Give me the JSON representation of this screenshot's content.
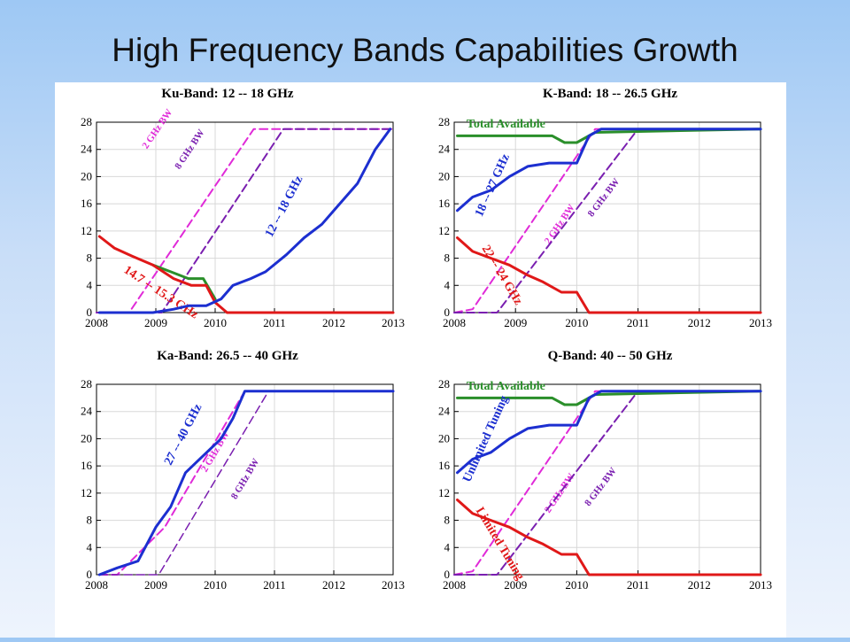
{
  "slide": {
    "title": "High Frequency Bands Capabilities Growth"
  },
  "colors": {
    "red": "#e01818",
    "green": "#2a8f2a",
    "blue": "#1c2fd0",
    "magenta": "#e02ad8",
    "purple": "#7a1fb0"
  },
  "chart_data": [
    {
      "type": "line",
      "title": "Ku-Band:  12 -- 18 GHz",
      "xlim": [
        2008,
        2013
      ],
      "ylim": [
        0,
        28
      ],
      "xticks": [
        "2008",
        "2009",
        "2010",
        "2011",
        "2012",
        "2013"
      ],
      "yticks": [
        "0",
        "4",
        "8",
        "12",
        "16",
        "20",
        "24",
        "28"
      ],
      "grid": true,
      "series": [
        {
          "name": "2 GHz BW",
          "color": "magenta",
          "style": "dash",
          "width": 2,
          "label_pos": [
            2008.85,
            24
          ],
          "x": [
            2008,
            2008.55,
            2010.65,
            2013
          ],
          "y": [
            0,
            0,
            27,
            27
          ]
        },
        {
          "name": "8 GHz BW",
          "color": "purple",
          "style": "dash",
          "width": 2,
          "label_pos": [
            2009.4,
            21
          ],
          "x": [
            2008,
            2009.1,
            2011.15,
            2013
          ],
          "y": [
            0,
            0,
            27,
            27
          ]
        },
        {
          "name": "",
          "color": "green",
          "style": "solid",
          "width": 3,
          "x": [
            2008.95,
            2009.25,
            2009.55,
            2009.8,
            2010.0
          ],
          "y": [
            7,
            6,
            5,
            5,
            2
          ]
        },
        {
          "name": "14.7 -- 15.3 GHz",
          "color": "red",
          "style": "solid",
          "width": 3,
          "label_pos": [
            2008.45,
            6
          ],
          "label_size": 13,
          "x": [
            2008.05,
            2008.3,
            2008.6,
            2008.95,
            2009.3,
            2009.6,
            2009.85,
            2010.0,
            2010.2,
            2013
          ],
          "y": [
            11.2,
            9.5,
            8.3,
            7.0,
            5.0,
            4.0,
            4.0,
            1.5,
            0,
            0
          ]
        },
        {
          "name": "12 -- 18 GHz",
          "color": "blue",
          "style": "solid",
          "width": 3,
          "label_pos": [
            2010.95,
            11
          ],
          "label_size": 14,
          "x": [
            2008.05,
            2008.95,
            2009.3,
            2009.55,
            2009.85,
            2010.1,
            2010.3,
            2010.6,
            2010.85,
            2011.2,
            2011.5,
            2011.8,
            2012.1,
            2012.4,
            2012.7,
            2012.95
          ],
          "y": [
            0,
            0,
            0.5,
            1,
            1,
            2,
            4,
            5,
            6,
            8.5,
            11,
            13,
            16,
            19,
            24,
            27
          ]
        }
      ]
    },
    {
      "type": "line",
      "title": "K-Band:  18 -- 26.5 GHz",
      "xlim": [
        2008,
        2013
      ],
      "ylim": [
        0,
        28
      ],
      "xticks": [
        "2008",
        "2009",
        "2010",
        "2011",
        "2012",
        "2013"
      ],
      "yticks": [
        "0",
        "4",
        "8",
        "12",
        "16",
        "20",
        "24",
        "28"
      ],
      "grid": true,
      "series": [
        {
          "name": "2 GHz BW",
          "color": "magenta",
          "style": "dash",
          "width": 2,
          "label_pos": [
            2009.55,
            10
          ],
          "x": [
            2008,
            2008.3,
            2010.3,
            2013
          ],
          "y": [
            0,
            0.5,
            27,
            27
          ]
        },
        {
          "name": "8 GHz BW",
          "color": "purple",
          "style": "dash",
          "width": 2,
          "label_pos": [
            2010.25,
            14
          ],
          "x": [
            2008,
            2008.7,
            2011.0,
            2013
          ],
          "y": [
            0,
            0,
            27,
            27
          ]
        },
        {
          "name": "Total Available",
          "color": "green",
          "style": "solid",
          "width": 3,
          "label_pos": [
            2008.2,
            27.2
          ],
          "label_size": 14,
          "label_angle": 0,
          "x": [
            2008.05,
            2009.4,
            2009.6,
            2009.8,
            2010.0,
            2010.3,
            2013
          ],
          "y": [
            26,
            26,
            26,
            25,
            25,
            26.5,
            27
          ]
        },
        {
          "name": "18 -- 27 GHz",
          "color": "blue",
          "style": "solid",
          "width": 3,
          "label_pos": [
            2008.45,
            14
          ],
          "label_size": 14,
          "x": [
            2008.05,
            2008.3,
            2008.6,
            2008.9,
            2009.2,
            2009.55,
            2009.8,
            2010.0,
            2010.2,
            2010.4,
            2013
          ],
          "y": [
            15,
            17,
            18,
            20,
            21.5,
            22,
            22,
            22,
            26,
            27,
            27
          ]
        },
        {
          "name": "22 -- 24 GHz",
          "color": "red",
          "style": "solid",
          "width": 3,
          "label_pos": [
            2008.45,
            9.5
          ],
          "label_size": 14,
          "x": [
            2008.05,
            2008.3,
            2008.6,
            2008.9,
            2009.2,
            2009.45,
            2009.75,
            2010.0,
            2010.2,
            2013
          ],
          "y": [
            11,
            9,
            8,
            7,
            5.5,
            4.5,
            3,
            3,
            0,
            0
          ]
        }
      ]
    },
    {
      "type": "line",
      "title": "Ka-Band:  26.5 -- 40 GHz",
      "xlim": [
        2008,
        2013
      ],
      "ylim": [
        0,
        28
      ],
      "xticks": [
        "2008",
        "2009",
        "2010",
        "2011",
        "2012",
        "2013"
      ],
      "yticks": [
        "0",
        "4",
        "8",
        "12",
        "16",
        "20",
        "24",
        "28"
      ],
      "grid": true,
      "series": [
        {
          "name": "2 GHz BW",
          "color": "magenta",
          "style": "dash",
          "width": 2,
          "label_pos": [
            2009.85,
            15
          ],
          "x": [
            2008.05,
            2008.35,
            2009.15,
            2010.5,
            2013
          ],
          "y": [
            0,
            0,
            7,
            27,
            27
          ]
        },
        {
          "name": "8 GHz BW",
          "color": "purple",
          "style": "dash",
          "width": 1.5,
          "label_pos": [
            2010.35,
            11
          ],
          "x": [
            2008.05,
            2008.9,
            2009.05,
            2010.9,
            2013
          ],
          "y": [
            0,
            0,
            0,
            27,
            27
          ]
        },
        {
          "name": "27 -- 40 GHz",
          "color": "blue",
          "style": "solid",
          "width": 3,
          "label_pos": [
            2009.25,
            16
          ],
          "label_size": 14,
          "x": [
            2008.05,
            2008.35,
            2008.7,
            2009.0,
            2009.25,
            2009.5,
            2009.8,
            2010.1,
            2010.3,
            2010.5,
            2013
          ],
          "y": [
            0,
            1,
            2,
            7,
            10,
            15,
            17.5,
            20,
            23,
            27,
            27
          ]
        }
      ]
    },
    {
      "type": "line",
      "title": "Q-Band:  40 -- 50 GHz",
      "xlim": [
        2008,
        2013
      ],
      "ylim": [
        0,
        28
      ],
      "xticks": [
        "2008",
        "2009",
        "2010",
        "2011",
        "2012",
        "2013"
      ],
      "yticks": [
        "0",
        "4",
        "8",
        "12",
        "16",
        "20",
        "24",
        "28"
      ],
      "grid": true,
      "series": [
        {
          "name": "2 GHz BW",
          "color": "magenta",
          "style": "dash",
          "width": 2,
          "label_pos": [
            2009.55,
            9
          ],
          "x": [
            2008,
            2008.3,
            2010.3,
            2013
          ],
          "y": [
            0,
            0.5,
            27,
            27
          ]
        },
        {
          "name": "8 GHz BW",
          "color": "purple",
          "style": "dash",
          "width": 2,
          "label_pos": [
            2010.2,
            10
          ],
          "x": [
            2008,
            2008.7,
            2011.0,
            2013
          ],
          "y": [
            0,
            0,
            27,
            27
          ]
        },
        {
          "name": "Total Available",
          "color": "green",
          "style": "solid",
          "width": 3,
          "label_pos": [
            2008.2,
            27.2
          ],
          "label_size": 14,
          "label_angle": 0,
          "x": [
            2008.05,
            2009.4,
            2009.6,
            2009.8,
            2010.0,
            2010.3,
            2013
          ],
          "y": [
            26,
            26,
            26,
            25,
            25,
            26.5,
            27
          ]
        },
        {
          "name": "Unlimited Tuning",
          "color": "blue",
          "style": "solid",
          "width": 3,
          "label_pos": [
            2008.25,
            13.5
          ],
          "label_size": 14,
          "x": [
            2008.05,
            2008.3,
            2008.6,
            2008.9,
            2009.2,
            2009.55,
            2009.8,
            2010.0,
            2010.2,
            2010.4,
            2013
          ],
          "y": [
            15,
            17,
            18,
            20,
            21.5,
            22,
            22,
            22,
            26,
            27,
            27
          ]
        },
        {
          "name": "Limited Tuning",
          "color": "red",
          "style": "solid",
          "width": 3,
          "label_pos": [
            2008.35,
            9.5
          ],
          "label_size": 14,
          "x": [
            2008.05,
            2008.3,
            2008.6,
            2008.9,
            2009.2,
            2009.45,
            2009.75,
            2010.0,
            2010.2,
            2013
          ],
          "y": [
            11,
            9,
            8,
            7,
            5.5,
            4.5,
            3,
            3,
            0,
            0
          ]
        }
      ]
    }
  ]
}
